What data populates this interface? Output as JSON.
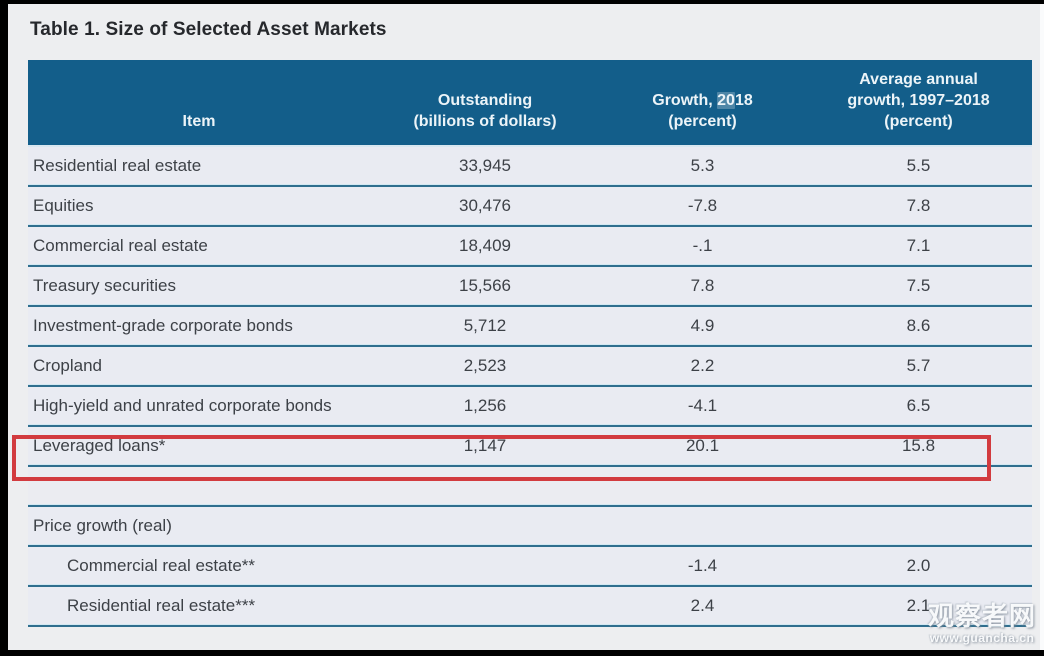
{
  "page": {
    "title": "Table 1. Size of Selected Asset Markets"
  },
  "table": {
    "headers": {
      "item": "Item",
      "outstanding": {
        "line1": "Outstanding",
        "line2": "(billions of dollars)"
      },
      "growth": {
        "prefix": "Growth, ",
        "highlight": "20",
        "suffix": "18",
        "line2": "(percent)"
      },
      "avg": {
        "line1": "Average annual",
        "line2": "growth, 1997–2018",
        "line3": "(percent)"
      }
    },
    "rows": [
      {
        "item": "Residential real estate",
        "outstanding": "33,945",
        "growth_2018": "5.3",
        "avg_growth": "5.5"
      },
      {
        "item": "Equities",
        "outstanding": "30,476",
        "growth_2018": "-7.8",
        "avg_growth": "7.8"
      },
      {
        "item": "Commercial real estate",
        "outstanding": "18,409",
        "growth_2018": "-.1",
        "avg_growth": "7.1"
      },
      {
        "item": "Treasury securities",
        "outstanding": "15,566",
        "growth_2018": "7.8",
        "avg_growth": "7.5"
      },
      {
        "item": "Investment-grade corporate bonds",
        "outstanding": "5,712",
        "growth_2018": "4.9",
        "avg_growth": "8.6"
      },
      {
        "item": "Cropland",
        "outstanding": "2,523",
        "growth_2018": "2.2",
        "avg_growth": "5.7"
      },
      {
        "item": "High-yield and unrated corporate bonds",
        "outstanding": "1,256",
        "growth_2018": "-4.1",
        "avg_growth": "6.5"
      },
      {
        "item": "Leveraged loans*",
        "outstanding": "1,147",
        "growth_2018": "20.1",
        "avg_growth": "15.8"
      },
      {
        "item": "",
        "outstanding": "",
        "growth_2018": "",
        "avg_growth": ""
      },
      {
        "item": "Price growth (real)",
        "outstanding": "",
        "growth_2018": "",
        "avg_growth": ""
      },
      {
        "item": "Commercial real estate**",
        "outstanding": "",
        "growth_2018": "-1.4",
        "avg_growth": "2.0"
      },
      {
        "item": "Residential real estate***",
        "outstanding": "",
        "growth_2018": "2.4",
        "avg_growth": "2.1"
      }
    ]
  },
  "annotations": {
    "highlighted_row": "Leveraged loans*"
  },
  "watermark": {
    "text": "观察者网",
    "url": "www.guancha.cn"
  },
  "colors": {
    "header_bg": "#135E8A",
    "header_text": "#ECF4F8",
    "row_bg": "#E9EBF2",
    "page_bg": "#EDEEF0",
    "separator_dark": "#2F6E8E",
    "separator_light": "#D2E8F2",
    "body_text": "#3D4147",
    "highlight_box": "#D23B3F"
  },
  "chart_data": {
    "type": "table",
    "title": "Table 1. Size of Selected Asset Markets",
    "columns": [
      "Item",
      "Outstanding (billions of dollars)",
      "Growth, 2018 (percent)",
      "Average annual growth, 1997–2018 (percent)"
    ],
    "series": [
      {
        "name": "Residential real estate",
        "values": [
          33945,
          5.3,
          5.5
        ]
      },
      {
        "name": "Equities",
        "values": [
          30476,
          -7.8,
          7.8
        ]
      },
      {
        "name": "Commercial real estate",
        "values": [
          18409,
          -0.1,
          7.1
        ]
      },
      {
        "name": "Treasury securities",
        "values": [
          15566,
          7.8,
          7.5
        ]
      },
      {
        "name": "Investment-grade corporate bonds",
        "values": [
          5712,
          4.9,
          8.6
        ]
      },
      {
        "name": "Cropland",
        "values": [
          2523,
          2.2,
          5.7
        ]
      },
      {
        "name": "High-yield and unrated corporate bonds",
        "values": [
          1256,
          -4.1,
          6.5
        ]
      },
      {
        "name": "Leveraged loans*",
        "values": [
          1147,
          20.1,
          15.8
        ]
      },
      {
        "name": "Price growth (real): Commercial real estate**",
        "values": [
          null,
          -1.4,
          2.0
        ]
      },
      {
        "name": "Price growth (real): Residential real estate***",
        "values": [
          null,
          2.4,
          2.1
        ]
      }
    ]
  }
}
